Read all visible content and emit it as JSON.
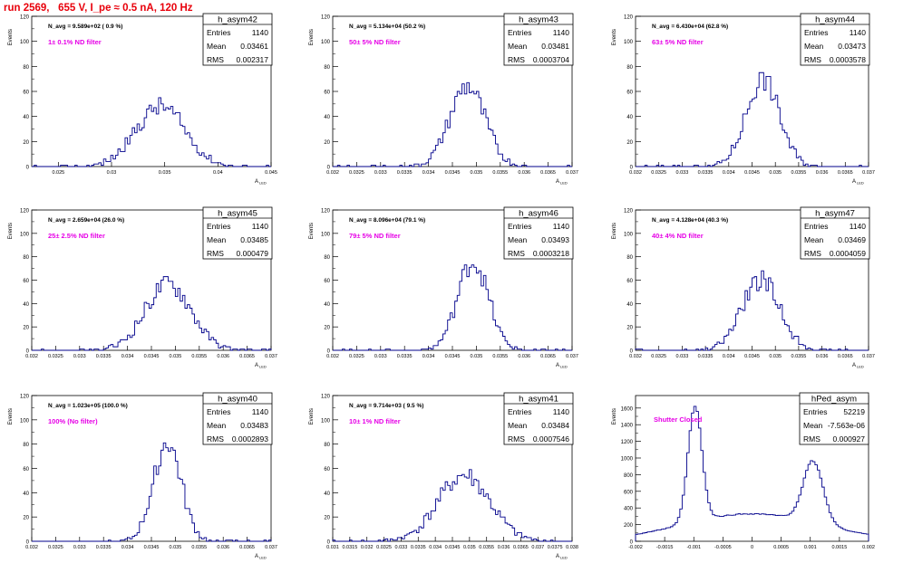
{
  "header": {
    "run_title": "run 2569,   655 V, I_pe ≈ 0.5 nA, 120 Hz"
  },
  "colors": {
    "hist_line": "#00008b",
    "annotation": "#e600e6",
    "title": "#e8000b",
    "frame": "#000000"
  },
  "stats_labels": {
    "entries": "Entries",
    "mean": "Mean",
    "rms": "RMS"
  },
  "chart_data": [
    {
      "type": "histogram",
      "name": "h_asym42",
      "ylabel": "Events",
      "xlabel": "A",
      "xlabel_sub": "LED",
      "nav_text": "N_avg = 9.589e+02 ( 0.9 %)",
      "annotation": "1± 0.1% ND filter",
      "xlim": [
        0.0225,
        0.045
      ],
      "ylim": [
        0,
        120
      ],
      "yticks": [
        0,
        20,
        40,
        60,
        80,
        100,
        120
      ],
      "yticklabels": [
        "0",
        "20",
        "40",
        "60",
        "80",
        "100",
        "120"
      ],
      "xticks": [
        0.025,
        0.03,
        0.035,
        0.04,
        0.045
      ],
      "xticklabels": [
        "0.025",
        "0.03",
        "0.035",
        "0.04",
        "0.045"
      ],
      "entries": "1140",
      "mean": "0.03461",
      "rms": "0.002317",
      "mu": 0.03461,
      "sigma": 0.002317,
      "peak": 48,
      "seed": 42
    },
    {
      "type": "histogram",
      "name": "h_asym43",
      "ylabel": "Events",
      "xlabel": "A",
      "xlabel_sub": "LED",
      "nav_text": "N_avg = 5.134e+04 (50.2 %)",
      "annotation": "50± 5% ND filter",
      "xlim": [
        0.032,
        0.037
      ],
      "ylim": [
        0,
        120
      ],
      "yticks": [
        0,
        20,
        40,
        60,
        80,
        100,
        120
      ],
      "yticklabels": [
        "0",
        "20",
        "40",
        "60",
        "80",
        "100",
        "120"
      ],
      "xticks": [
        0.032,
        0.0325,
        0.033,
        0.0335,
        0.034,
        0.0345,
        0.035,
        0.0355,
        0.036,
        0.0365,
        0.037
      ],
      "xticklabels": [
        "0.032",
        "0.0325",
        "0.033",
        "0.0335",
        "0.034",
        "0.0345",
        "0.035",
        "0.0355",
        "0.036",
        "0.0365",
        "0.037"
      ],
      "entries": "1140",
      "mean": "0.03481",
      "rms": "0.0003704",
      "mu": 0.03481,
      "sigma": 0.0003704,
      "peak": 64,
      "seed": 43
    },
    {
      "type": "histogram",
      "name": "h_asym44",
      "ylabel": "Events",
      "xlabel": "A",
      "xlabel_sub": "LED",
      "nav_text": "N_avg = 6.430e+04 (62.8 %)",
      "annotation": "63± 5% ND filter",
      "xlim": [
        0.032,
        0.037
      ],
      "ylim": [
        0,
        120
      ],
      "yticks": [
        0,
        20,
        40,
        60,
        80,
        100,
        120
      ],
      "yticklabels": [
        "0",
        "20",
        "40",
        "60",
        "80",
        "100",
        "120"
      ],
      "xticks": [
        0.032,
        0.0325,
        0.033,
        0.0335,
        0.034,
        0.0345,
        0.035,
        0.0355,
        0.036,
        0.0365,
        0.037
      ],
      "xticklabels": [
        "0.032",
        "0.0325",
        "0.033",
        "0.0335",
        "0.034",
        "0.0345",
        "0.035",
        "0.0355",
        "0.036",
        "0.0365",
        "0.037"
      ],
      "entries": "1140",
      "mean": "0.03473",
      "rms": "0.0003578",
      "mu": 0.03473,
      "sigma": 0.0003578,
      "peak": 70,
      "seed": 44
    },
    {
      "type": "histogram",
      "name": "h_asym45",
      "ylabel": "Events",
      "xlabel": "A",
      "xlabel_sub": "LED",
      "nav_text": "N_avg = 2.659e+04 (26.0 %)",
      "annotation": "25± 2.5% ND filter",
      "xlim": [
        0.032,
        0.037
      ],
      "ylim": [
        0,
        120
      ],
      "yticks": [
        0,
        20,
        40,
        60,
        80,
        100,
        120
      ],
      "yticklabels": [
        "0",
        "20",
        "40",
        "60",
        "80",
        "100",
        "120"
      ],
      "xticks": [
        0.032,
        0.0325,
        0.033,
        0.0335,
        0.034,
        0.0345,
        0.035,
        0.0355,
        0.036,
        0.0365,
        0.037
      ],
      "xticklabels": [
        "0.032",
        "0.0325",
        "0.033",
        "0.0335",
        "0.034",
        "0.0345",
        "0.035",
        "0.0355",
        "0.036",
        "0.0365",
        "0.037"
      ],
      "entries": "1140",
      "mean": "0.03485",
      "rms": "0.000479",
      "mu": 0.03485,
      "sigma": 0.000479,
      "peak": 57,
      "seed": 45
    },
    {
      "type": "histogram",
      "name": "h_asym46",
      "ylabel": "Events",
      "xlabel": "A",
      "xlabel_sub": "LED",
      "nav_text": "N_avg = 8.096e+04 (79.1 %)",
      "annotation": "79± 5% ND filter",
      "xlim": [
        0.032,
        0.037
      ],
      "ylim": [
        0,
        120
      ],
      "yticks": [
        0,
        20,
        40,
        60,
        80,
        100,
        120
      ],
      "yticklabels": [
        "0",
        "20",
        "40",
        "60",
        "80",
        "100",
        "120"
      ],
      "xticks": [
        0.032,
        0.0325,
        0.033,
        0.0335,
        0.034,
        0.0345,
        0.035,
        0.0355,
        0.036,
        0.0365,
        0.037
      ],
      "xticklabels": [
        "0.032",
        "0.0325",
        "0.033",
        "0.0335",
        "0.034",
        "0.0345",
        "0.035",
        "0.0355",
        "0.036",
        "0.0365",
        "0.037"
      ],
      "entries": "1140",
      "mean": "0.03493",
      "rms": "0.0003218",
      "mu": 0.03493,
      "sigma": 0.0003218,
      "peak": 76,
      "seed": 46
    },
    {
      "type": "histogram",
      "name": "h_asym47",
      "ylabel": "Events",
      "xlabel": "A",
      "xlabel_sub": "LED",
      "nav_text": "N_avg = 4.128e+04 (40.3 %)",
      "annotation": "40± 4% ND filter",
      "xlim": [
        0.032,
        0.037
      ],
      "ylim": [
        0,
        120
      ],
      "yticks": [
        0,
        20,
        40,
        60,
        80,
        100,
        120
      ],
      "yticklabels": [
        "0",
        "20",
        "40",
        "60",
        "80",
        "100",
        "120"
      ],
      "xticks": [
        0.032,
        0.0325,
        0.033,
        0.0335,
        0.034,
        0.0345,
        0.035,
        0.0355,
        0.036,
        0.0365,
        0.037
      ],
      "xticklabels": [
        "0.032",
        "0.0325",
        "0.033",
        "0.0335",
        "0.034",
        "0.0345",
        "0.035",
        "0.0355",
        "0.036",
        "0.0365",
        "0.037"
      ],
      "entries": "1140",
      "mean": "0.03469",
      "rms": "0.0004059",
      "mu": 0.03469,
      "sigma": 0.0004059,
      "peak": 60,
      "seed": 47
    },
    {
      "type": "histogram",
      "name": "h_asym40",
      "ylabel": "Events",
      "xlabel": "A",
      "xlabel_sub": "LED",
      "nav_text": "N_avg = 1.023e+05 (100.0 %)",
      "annotation": "100% (No filter)",
      "xlim": [
        0.032,
        0.037
      ],
      "ylim": [
        0,
        120
      ],
      "yticks": [
        0,
        20,
        40,
        60,
        80,
        100,
        120
      ],
      "yticklabels": [
        "0",
        "20",
        "40",
        "60",
        "80",
        "100",
        "120"
      ],
      "xticks": [
        0.032,
        0.0325,
        0.033,
        0.0335,
        0.034,
        0.0345,
        0.035,
        0.0355,
        0.036,
        0.0365,
        0.037
      ],
      "xticklabels": [
        "0.032",
        "0.0325",
        "0.033",
        "0.0335",
        "0.034",
        "0.0345",
        "0.035",
        "0.0355",
        "0.036",
        "0.0365",
        "0.037"
      ],
      "entries": "1140",
      "mean": "0.03483",
      "rms": "0.0002893",
      "mu": 0.03483,
      "sigma": 0.0002893,
      "peak": 81,
      "seed": 40
    },
    {
      "type": "histogram",
      "name": "h_asym41",
      "ylabel": "Events",
      "xlabel": "A",
      "xlabel_sub": "LED",
      "nav_text": "N_avg = 9.714e+03 ( 9.5 %)",
      "annotation": "10± 1% ND filter",
      "xlim": [
        0.031,
        0.038
      ],
      "ylim": [
        0,
        120
      ],
      "yticks": [
        0,
        20,
        40,
        60,
        80,
        100,
        120
      ],
      "yticklabels": [
        "0",
        "20",
        "40",
        "60",
        "80",
        "100",
        "120"
      ],
      "xticks": [
        0.031,
        0.0315,
        0.032,
        0.0325,
        0.033,
        0.0335,
        0.034,
        0.0345,
        0.035,
        0.0355,
        0.036,
        0.0365,
        0.037,
        0.0375,
        0.038
      ],
      "xticklabels": [
        "0.031",
        "0.0315",
        "0.032",
        "0.0325",
        "0.033",
        "0.0335",
        "0.034",
        "0.0345",
        "0.035",
        "0.0355",
        "0.036",
        "0.0365",
        "0.037",
        "0.0375",
        "0.038"
      ],
      "entries": "1140",
      "mean": "0.03484",
      "rms": "0.0007546",
      "mu": 0.03484,
      "sigma": 0.0007546,
      "peak": 54,
      "seed": 41
    },
    {
      "type": "histogram",
      "name": "hPed_asym",
      "ylabel": "Events",
      "xlabel": "",
      "xlabel_sub": "",
      "nav_text": "",
      "annotation": "Shutter Closed",
      "xlim": [
        -0.002,
        0.002
      ],
      "ylim": [
        0,
        1750
      ],
      "yticks": [
        0,
        200,
        400,
        600,
        800,
        1000,
        1200,
        1400,
        1600
      ],
      "yticklabels": [
        "0",
        "200",
        "400",
        "600",
        "800",
        "1000",
        "1200",
        "1400",
        "1600"
      ],
      "xticks": [
        -0.002,
        -0.0015,
        -0.001,
        -0.0005,
        0,
        0.0005,
        0.001,
        0.0015,
        0.002
      ],
      "xticklabels": [
        "-0.002",
        "-0.0015",
        "-0.001",
        "-0.0005",
        "0",
        "0.0005",
        "0.001",
        "0.0015",
        "0.002"
      ],
      "entries": "52219",
      "mean": "-7.563e-06",
      "rms": "0.000927",
      "bimodal": [
        {
          "mu": -0.00098,
          "sigma": 0.00012,
          "amp": 1380
        },
        {
          "mu": 0.00105,
          "sigma": 0.00017,
          "amp": 740
        },
        {
          "mu": 0.0,
          "sigma": 0.0012,
          "amp": 330
        }
      ],
      "seed": 99
    }
  ]
}
